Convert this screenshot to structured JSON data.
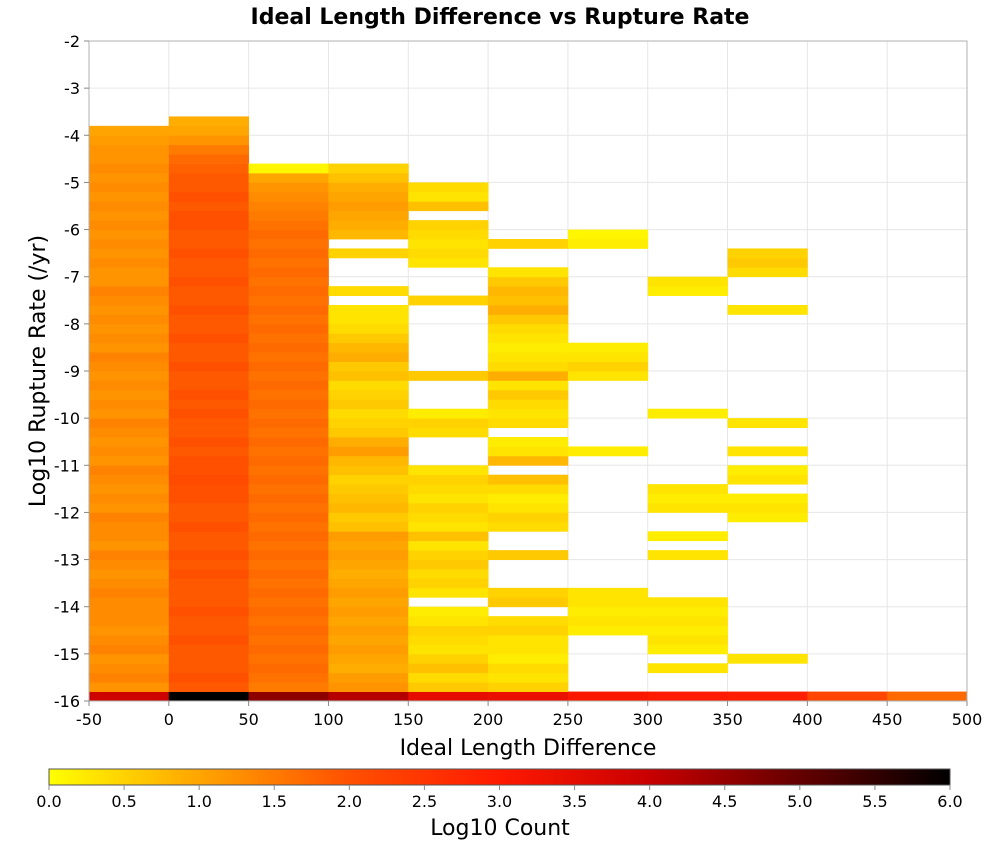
{
  "chart_data": {
    "type": "heatmap",
    "title": "Ideal Length Difference vs Rupture Rate",
    "xlabel": "Ideal Length Difference",
    "ylabel": "Log10 Rupture Rate (/yr)",
    "colorbar_label": "Log10 Count",
    "xlim": [
      -50,
      500
    ],
    "ylim": [
      -16,
      -2
    ],
    "xticks": [
      "-50",
      "0",
      "50",
      "100",
      "150",
      "200",
      "250",
      "300",
      "350",
      "400",
      "450",
      "500"
    ],
    "yticks": [
      "-16",
      "-15",
      "-14",
      "-13",
      "-12",
      "-11",
      "-10",
      "-9",
      "-8",
      "-7",
      "-6",
      "-5",
      "-4",
      "-3",
      "-2"
    ],
    "colorbar_range": [
      0,
      6
    ],
    "colorbar_ticks": [
      "0.0",
      "0.5",
      "1.0",
      "1.5",
      "2.0",
      "2.5",
      "3.0",
      "3.5",
      "4.0",
      "4.5",
      "5.0",
      "5.5",
      "6.0"
    ],
    "colormap": [
      "#ffff00",
      "#ffa500",
      "#ff5000",
      "#ff1a00",
      "#c80000",
      "#640000",
      "#000000"
    ],
    "grid": true,
    "colorbar_position": "bottom",
    "x_bin_width": 50,
    "y_bin_width": 0.2,
    "columns": [
      {
        "x0": -50,
        "y0": -16.0,
        "values": [
          3.9,
          1.2,
          1.4,
          1.3,
          1.2,
          1.4,
          1.3,
          1.2,
          1.3,
          1.3,
          1.3,
          1.4,
          1.3,
          1.2,
          1.3,
          1.4,
          1.2,
          1.3,
          1.3,
          1.4,
          1.2,
          1.3,
          1.2,
          1.3,
          1.4,
          1.2,
          1.3,
          1.2,
          1.3,
          1.4,
          1.2,
          1.3,
          1.2,
          1.3,
          1.2,
          1.3,
          1.4,
          1.2,
          1.3,
          1.2,
          1.3,
          1.2,
          1.3,
          1.4,
          1.2,
          1.2,
          1.3,
          1.2,
          1.3,
          1.2,
          1.3,
          1.2,
          1.3,
          1.2,
          1.3,
          1.2,
          1.3,
          1.2,
          1.2,
          1.1,
          1.0
        ]
      },
      {
        "x0": 0,
        "y0": -16.0,
        "values": [
          6.0,
          1.9,
          2.0,
          1.9,
          1.9,
          1.9,
          2.0,
          1.9,
          1.9,
          2.0,
          1.9,
          1.9,
          1.9,
          2.0,
          1.9,
          2.0,
          1.9,
          1.9,
          2.0,
          1.9,
          1.9,
          2.0,
          2.0,
          2.1,
          2.0,
          2.0,
          1.9,
          2.0,
          1.9,
          1.9,
          2.0,
          1.9,
          2.0,
          1.9,
          1.9,
          2.0,
          1.9,
          1.9,
          2.0,
          1.9,
          1.9,
          2.0,
          1.9,
          1.9,
          2.0,
          1.9,
          1.9,
          2.0,
          1.9,
          1.9,
          2.0,
          2.0,
          1.9,
          2.0,
          1.9,
          1.9,
          1.8,
          1.7,
          1.5,
          1.2,
          1.0,
          0.9
        ]
      },
      {
        "x0": 50,
        "y0": -16.0,
        "values": [
          4.6,
          1.5,
          1.6,
          1.7,
          1.6,
          1.7,
          1.6,
          1.7,
          1.6,
          1.7,
          1.6,
          1.7,
          1.6,
          1.7,
          1.6,
          1.7,
          1.6,
          1.7,
          1.6,
          1.7,
          1.6,
          1.7,
          1.6,
          1.7,
          1.6,
          1.7,
          1.6,
          1.7,
          1.6,
          1.7,
          1.6,
          1.7,
          1.6,
          1.7,
          1.6,
          1.7,
          1.6,
          1.7,
          1.6,
          1.7,
          1.6,
          1.7,
          1.6,
          1.7,
          1.6,
          1.7,
          1.6,
          1.7,
          1.6,
          1.7,
          1.6,
          1.5,
          1.4,
          1.3,
          1.2,
          1.0,
          0.1
        ]
      },
      {
        "x0": 100,
        "y0": -16.0,
        "values": [
          4.2,
          1.2,
          1.1,
          0.9,
          1.0,
          1.1,
          1.0,
          1.1,
          1.0,
          1.1,
          1.0,
          1.1,
          1.0,
          0.9,
          1.0,
          1.1,
          1.0,
          1.1,
          0.7,
          0.6,
          0.8,
          0.7,
          0.6,
          0.5,
          0.7,
          0.8,
          1.1,
          0.9,
          0.6,
          0.5,
          0.4,
          0.6,
          0.5,
          0.4,
          0.7,
          0.6,
          0.9,
          0.8,
          0.6,
          0.4,
          0.3,
          0.3,
          null,
          0.4,
          null,
          null,
          null,
          0.5,
          null,
          0.8,
          0.9,
          1.0,
          1.1,
          1.0,
          0.9,
          0.7,
          0.5
        ]
      },
      {
        "x0": 150,
        "y0": -16.0,
        "values": [
          3.5,
          0.6,
          0.4,
          0.7,
          0.5,
          0.3,
          0.4,
          0.5,
          0.3,
          0.2,
          null,
          0.3,
          0.5,
          0.4,
          0.6,
          0.5,
          0.3,
          0.7,
          0.3,
          0.4,
          0.5,
          0.3,
          0.4,
          0.5,
          0.3,
          null,
          null,
          null,
          0.4,
          0.5,
          0.2,
          null,
          null,
          null,
          0.6,
          null,
          null,
          null,
          null,
          null,
          null,
          null,
          0.5,
          null,
          null,
          null,
          0.3,
          0.4,
          0.3,
          0.4,
          0.5,
          null,
          0.7,
          0.3,
          0.4
        ]
      },
      {
        "x0": 200,
        "y0": -16.0,
        "values": [
          3.4,
          0.5,
          0.3,
          0.4,
          0.2,
          0.3,
          0.3,
          0.5,
          0.4,
          null,
          0.6,
          0.5,
          null,
          null,
          null,
          0.6,
          null,
          null,
          0.4,
          0.5,
          0.3,
          0.2,
          0.4,
          0.7,
          null,
          0.8,
          0.3,
          0.2,
          null,
          0.4,
          0.3,
          0.4,
          0.6,
          0.3,
          0.9,
          0.4,
          0.3,
          0.2,
          0.3,
          0.4,
          0.6,
          0.9,
          0.7,
          0.8,
          0.6,
          0.3,
          null,
          null,
          0.5
        ]
      },
      {
        "x0": 250,
        "y0": -16.0,
        "values": [
          3.1,
          null,
          null,
          null,
          null,
          null,
          null,
          0.2,
          0.3,
          0.2,
          0.3,
          0.3,
          null,
          null,
          null,
          null,
          null,
          null,
          null,
          null,
          null,
          null,
          null,
          null,
          null,
          null,
          0.2,
          null,
          null,
          null,
          null,
          null,
          null,
          null,
          0.3,
          0.5,
          0.3,
          0.2,
          null,
          null,
          null,
          null,
          null,
          null,
          null,
          null,
          null,
          null,
          0.2,
          0.1
        ]
      },
      {
        "x0": 300,
        "y0": -16.0,
        "values": [
          3.0,
          null,
          null,
          0.3,
          null,
          0.2,
          0.3,
          0.2,
          0.3,
          0.2,
          0.3,
          null,
          null,
          null,
          null,
          0.3,
          null,
          0.2,
          null,
          null,
          0.3,
          0.2,
          0.3,
          null,
          null,
          null,
          null,
          null,
          null,
          null,
          0.2,
          null,
          null,
          null,
          null,
          null,
          null,
          null,
          null,
          null,
          null,
          null,
          null,
          0.2,
          0.3
        ]
      },
      {
        "x0": 350,
        "y0": -16.0,
        "values": [
          2.9,
          null,
          null,
          null,
          0.3,
          null,
          null,
          null,
          null,
          null,
          null,
          null,
          null,
          null,
          null,
          null,
          null,
          null,
          null,
          0.2,
          0.3,
          0.2,
          null,
          0.3,
          0.2,
          null,
          0.3,
          null,
          null,
          0.3,
          null,
          null,
          null,
          null,
          null,
          null,
          null,
          null,
          null,
          null,
          null,
          0.3,
          null,
          null,
          null,
          0.4,
          0.6,
          0.5
        ]
      },
      {
        "x0": 400,
        "y0": -16.0,
        "values": [
          2.2
        ]
      },
      {
        "x0": 450,
        "y0": -16.0,
        "values": [
          1.7
        ]
      }
    ]
  }
}
